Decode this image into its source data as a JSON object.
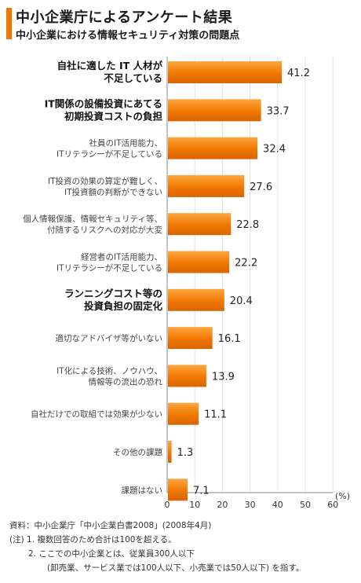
{
  "header": {
    "title": "中小企業庁によるアンケート結果",
    "subtitle": "中小企業における情報セキュリティ対策の問題点"
  },
  "chart_data": {
    "type": "bar",
    "orientation": "horizontal",
    "title": "中小企業庁によるアンケート結果",
    "subtitle": "中小企業における情報セキュリティ対策の問題点",
    "xlabel": "",
    "ylabel": "",
    "unit": "(%)",
    "xlim": [
      0,
      60
    ],
    "ticks": [
      "0",
      "10",
      "20",
      "30",
      "40",
      "50",
      "60"
    ],
    "grid": true,
    "bar_color": "#f07800",
    "highlight_color": "#111111",
    "categories": [
      {
        "lines": [
          "自社に適した IT 人材が",
          "不足している"
        ],
        "bold": true
      },
      {
        "lines": [
          "IT関係の設備投資にあてる",
          "初期投資コストの負担"
        ],
        "bold": true
      },
      {
        "lines": [
          "社員のIT活用能力、",
          "ITリテラシーが不足している"
        ],
        "bold": false
      },
      {
        "lines": [
          "IT投資の効果の算定が難しく、",
          "IT投資額の判断ができない"
        ],
        "bold": false
      },
      {
        "lines": [
          "個人情報保護、情報セキュリティ等、",
          "付随するリスクへの対応が大変"
        ],
        "bold": false
      },
      {
        "lines": [
          "経営者のIT活用能力、",
          "ITリテラシーが不足している"
        ],
        "bold": false
      },
      {
        "lines": [
          "ランニングコスト等の",
          "投資負担の固定化"
        ],
        "bold": true
      },
      {
        "lines": [
          "適切なアドバイザ等がいない"
        ],
        "bold": false
      },
      {
        "lines": [
          "IT化による技術、ノウハウ、",
          "情報等の流出の恐れ"
        ],
        "bold": false
      },
      {
        "lines": [
          "自社だけでの取組では効果が少ない"
        ],
        "bold": false
      },
      {
        "lines": [
          "その他の課題"
        ],
        "bold": false
      },
      {
        "lines": [
          "課題はない"
        ],
        "bold": false
      }
    ],
    "values": [
      41.2,
      33.7,
      32.4,
      27.6,
      22.8,
      22.2,
      20.4,
      16.1,
      13.9,
      11.1,
      1.3,
      7.1
    ],
    "value_labels": [
      "41.2",
      "33.7",
      "32.4",
      "27.6",
      "22.8",
      "22.2",
      "20.4",
      "16.1",
      "13.9",
      "11.1",
      "1.3",
      "7.1"
    ]
  },
  "footer": {
    "source": "資料：中小企業庁「中小企業白書2008」(2008年4月)",
    "note1": "(注) 1. 複数回答のため合計は100を超える。",
    "note2": "2. ここでの中小企業とは、従業員300人以下",
    "note3": "(卸売業、サービス業では100人以下、小売業では50人以下) を指す。"
  }
}
